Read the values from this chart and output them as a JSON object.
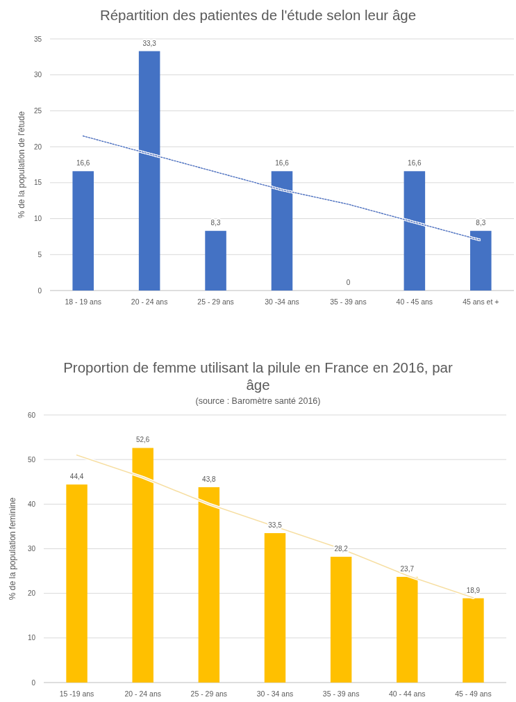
{
  "chart_data": [
    {
      "type": "bar",
      "title": "Répartition des patientes de l'étude selon leur âge",
      "ylabel": "% de la population de l'étude",
      "categories": [
        "18 - 19 ans",
        "20 - 24 ans",
        "25 - 29 ans",
        "30 -34 ans",
        "35 - 39 ans",
        "40 - 45 ans",
        "45 ans et +"
      ],
      "series": [
        {
          "color": "#4472c4",
          "values": [
            16.6,
            33.3,
            8.3,
            16.6,
            0,
            16.6,
            8.3
          ],
          "value_labels": [
            "16,6",
            "33,3",
            "8,3",
            "16,6",
            "0",
            "16,6",
            "8,3"
          ]
        },
        {
          "type": "line",
          "color": "#4472c4",
          "line_style": "dotted",
          "values": [
            21.5,
            19,
            16.5,
            14,
            12,
            9.5,
            7
          ]
        }
      ],
      "ylim": [
        0,
        35
      ],
      "yticks": [
        0,
        5,
        10,
        15,
        20,
        25,
        30,
        35
      ],
      "grid": "y"
    },
    {
      "type": "bar",
      "title": "Proportion de femme utilisant la pilule en France en 2016, par âge",
      "subtitle": "(source : Baromètre santé 2016)",
      "ylabel": "% de la population feminine",
      "categories": [
        "15 -19 ans",
        "20 - 24 ans",
        "25 - 29 ans",
        "30 - 34 ans",
        "35 - 39 ans",
        "40 - 44 ans",
        "45 - 49 ans"
      ],
      "series": [
        {
          "color": "#ffc000",
          "values": [
            44.4,
            52.6,
            43.8,
            33.5,
            28.2,
            23.7,
            18.9
          ],
          "value_labels": [
            "44,4",
            "52,6",
            "43,8",
            "33,5",
            "28,2",
            "23,7",
            "18,9"
          ]
        },
        {
          "type": "line",
          "color": "#f7dfa0",
          "line_style": "solid",
          "values": [
            51,
            46,
            40,
            35,
            30,
            24,
            19
          ]
        }
      ],
      "ylim": [
        0,
        60
      ],
      "yticks": [
        0,
        10,
        20,
        30,
        40,
        50,
        60
      ],
      "grid": "y"
    }
  ]
}
